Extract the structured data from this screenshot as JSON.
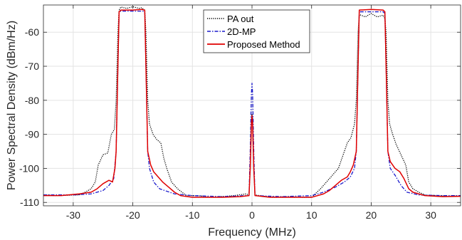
{
  "chart_data": {
    "type": "line",
    "xlabel": "Frequency (MHz)",
    "ylabel": "Power Spectral Density (dBm/Hz)",
    "xlim": [
      -35,
      35
    ],
    "ylim": [
      -111,
      -52
    ],
    "xticks": [
      -30,
      -20,
      -10,
      0,
      10,
      20,
      30
    ],
    "yticks": [
      -110,
      -100,
      -90,
      -80,
      -70,
      -60
    ],
    "grid": true,
    "legend_position": "top-center",
    "series": [
      {
        "name": "PA out",
        "color": "#000000",
        "style": "dotted",
        "points": [
          [
            -35,
            -107.8
          ],
          [
            -33,
            -108
          ],
          [
            -31,
            -107.9
          ],
          [
            -29,
            -107.8
          ],
          [
            -28,
            -107
          ],
          [
            -27,
            -106
          ],
          [
            -26.3,
            -104
          ],
          [
            -25.8,
            -99
          ],
          [
            -25,
            -96
          ],
          [
            -24.2,
            -95.5
          ],
          [
            -23.6,
            -90
          ],
          [
            -23.1,
            -88.6
          ],
          [
            -22.8,
            -80
          ],
          [
            -22.5,
            -60
          ],
          [
            -22.3,
            -53.5
          ],
          [
            -22,
            -52.6
          ],
          [
            -21,
            -53
          ],
          [
            -20,
            -52.5
          ],
          [
            -19,
            -53
          ],
          [
            -18.5,
            -52.8
          ],
          [
            -18,
            -53.5
          ],
          [
            -17.8,
            -60
          ],
          [
            -17.5,
            -80
          ],
          [
            -17.2,
            -87
          ],
          [
            -16.6,
            -90
          ],
          [
            -16,
            -91.5
          ],
          [
            -15.3,
            -92.5
          ],
          [
            -14.8,
            -97
          ],
          [
            -14.3,
            -100
          ],
          [
            -13.5,
            -104
          ],
          [
            -12.5,
            -106
          ],
          [
            -11,
            -108
          ],
          [
            -9,
            -108
          ],
          [
            -7,
            -108.5
          ],
          [
            -5,
            -108.3
          ],
          [
            -3,
            -108
          ],
          [
            -1,
            -107.5
          ],
          [
            -0.5,
            -107.8
          ],
          [
            -0.3,
            -100
          ],
          [
            -0.1,
            -85
          ],
          [
            0,
            -84
          ],
          [
            0.1,
            -85
          ],
          [
            0.3,
            -100
          ],
          [
            0.5,
            -107.8
          ],
          [
            2,
            -108.2
          ],
          [
            4,
            -108.5
          ],
          [
            6,
            -108.3
          ],
          [
            8,
            -108.5
          ],
          [
            10,
            -108.5
          ],
          [
            11.5,
            -106
          ],
          [
            12.5,
            -104
          ],
          [
            13.5,
            -102
          ],
          [
            14.5,
            -100
          ],
          [
            15.3,
            -96
          ],
          [
            16,
            -92.5
          ],
          [
            16.6,
            -91
          ],
          [
            17.2,
            -87
          ],
          [
            17.5,
            -80
          ],
          [
            17.8,
            -60
          ],
          [
            18,
            -54.8
          ],
          [
            19,
            -55.5
          ],
          [
            20,
            -54.5
          ],
          [
            21,
            -55.5
          ],
          [
            22,
            -55
          ],
          [
            22.3,
            -56
          ],
          [
            22.5,
            -60
          ],
          [
            22.8,
            -80
          ],
          [
            23.1,
            -87
          ],
          [
            23.6,
            -90
          ],
          [
            24.2,
            -93
          ],
          [
            25,
            -96
          ],
          [
            25.8,
            -99
          ],
          [
            26.3,
            -104
          ],
          [
            27,
            -106
          ],
          [
            28,
            -107
          ],
          [
            29,
            -107.8
          ],
          [
            31,
            -108
          ],
          [
            33,
            -108.2
          ],
          [
            35,
            -108
          ]
        ]
      },
      {
        "name": "2D-MP",
        "color": "#1a1acc",
        "style": "dashdot",
        "points": [
          [
            -35,
            -107.8
          ],
          [
            -30,
            -107.8
          ],
          [
            -27,
            -107.5
          ],
          [
            -25,
            -106.5
          ],
          [
            -24,
            -105
          ],
          [
            -23.2,
            -103
          ],
          [
            -22.8,
            -95
          ],
          [
            -22.5,
            -70
          ],
          [
            -22.3,
            -54
          ],
          [
            -22,
            -53.8
          ],
          [
            -20,
            -53.8
          ],
          [
            -18,
            -53.8
          ],
          [
            -17.8,
            -70
          ],
          [
            -17.5,
            -95
          ],
          [
            -17.2,
            -100
          ],
          [
            -16.5,
            -104
          ],
          [
            -15.5,
            -106
          ],
          [
            -13,
            -107.5
          ],
          [
            -10,
            -108
          ],
          [
            -5,
            -108.3
          ],
          [
            -1,
            -108
          ],
          [
            -0.5,
            -108
          ],
          [
            -0.3,
            -95
          ],
          [
            -0.1,
            -78
          ],
          [
            0,
            -75
          ],
          [
            0.1,
            -78
          ],
          [
            0.3,
            -95
          ],
          [
            0.5,
            -108
          ],
          [
            5,
            -108.3
          ],
          [
            10,
            -108
          ],
          [
            12,
            -107
          ],
          [
            14,
            -105.5
          ],
          [
            15.5,
            -104
          ],
          [
            16.5,
            -102.5
          ],
          [
            17.2,
            -100
          ],
          [
            17.5,
            -95
          ],
          [
            17.8,
            -70
          ],
          [
            18,
            -54
          ],
          [
            20,
            -54
          ],
          [
            22,
            -54
          ],
          [
            22.3,
            -54.5
          ],
          [
            22.5,
            -70
          ],
          [
            22.8,
            -95
          ],
          [
            23.2,
            -100
          ],
          [
            24,
            -102
          ],
          [
            25,
            -105
          ],
          [
            26,
            -107
          ],
          [
            28,
            -107.8
          ],
          [
            32,
            -108
          ],
          [
            35,
            -108
          ]
        ]
      },
      {
        "name": "Proposed Method",
        "color": "#e00000",
        "style": "solid",
        "points": [
          [
            -35,
            -108
          ],
          [
            -32,
            -108
          ],
          [
            -29,
            -107.5
          ],
          [
            -27,
            -107
          ],
          [
            -26,
            -106
          ],
          [
            -25,
            -104.5
          ],
          [
            -24,
            -103.5
          ],
          [
            -23.4,
            -104
          ],
          [
            -23,
            -100
          ],
          [
            -22.8,
            -95
          ],
          [
            -22.5,
            -70
          ],
          [
            -22.3,
            -54
          ],
          [
            -22,
            -53.5
          ],
          [
            -20,
            -53.5
          ],
          [
            -18.5,
            -53.3
          ],
          [
            -18,
            -53.5
          ],
          [
            -17.8,
            -70
          ],
          [
            -17.5,
            -95
          ],
          [
            -17,
            -99
          ],
          [
            -16.5,
            -101
          ],
          [
            -16,
            -102
          ],
          [
            -15,
            -104
          ],
          [
            -14,
            -105.5
          ],
          [
            -13,
            -107
          ],
          [
            -12,
            -108
          ],
          [
            -10,
            -108.5
          ],
          [
            -5,
            -108.5
          ],
          [
            -2,
            -108.3
          ],
          [
            -0.5,
            -108
          ],
          [
            -0.3,
            -100
          ],
          [
            -0.1,
            -87
          ],
          [
            0,
            -84.5
          ],
          [
            0.1,
            -87
          ],
          [
            0.3,
            -100
          ],
          [
            0.5,
            -108
          ],
          [
            3,
            -108.5
          ],
          [
            6,
            -108.5
          ],
          [
            10,
            -108.5
          ],
          [
            12,
            -107.5
          ],
          [
            13,
            -106.5
          ],
          [
            14,
            -105
          ],
          [
            15,
            -103.5
          ],
          [
            16,
            -102.5
          ],
          [
            16.5,
            -101
          ],
          [
            17,
            -99
          ],
          [
            17.5,
            -95
          ],
          [
            17.8,
            -70
          ],
          [
            18,
            -53.5
          ],
          [
            20,
            -53.3
          ],
          [
            22,
            -53.5
          ],
          [
            22.3,
            -54
          ],
          [
            22.5,
            -70
          ],
          [
            22.8,
            -95
          ],
          [
            23.2,
            -98
          ],
          [
            24,
            -100
          ],
          [
            24.8,
            -101
          ],
          [
            25.5,
            -103
          ],
          [
            26.3,
            -106
          ],
          [
            27,
            -107
          ],
          [
            29,
            -108
          ],
          [
            32,
            -108.3
          ],
          [
            35,
            -108.2
          ]
        ]
      }
    ]
  }
}
